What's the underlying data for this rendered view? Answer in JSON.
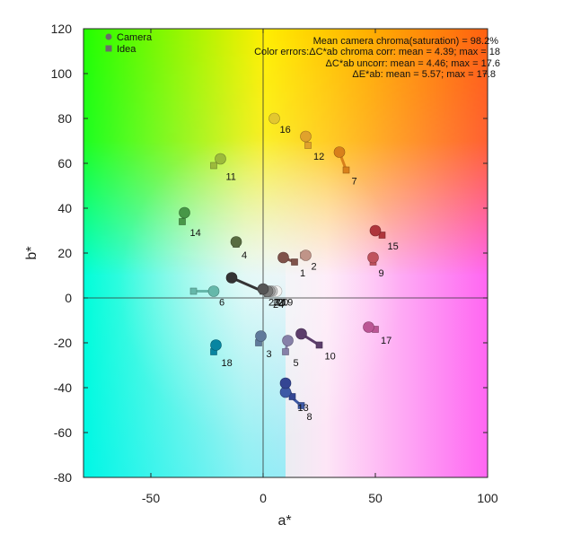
{
  "chart_data": {
    "type": "scatter",
    "xlabel": "a*",
    "ylabel": "b*",
    "xlim": [
      -80,
      100
    ],
    "ylim": [
      -80,
      120
    ],
    "xticks": [
      "-50",
      "0",
      "50",
      "100"
    ],
    "yticks": [
      "-80",
      "-60",
      "-40",
      "-20",
      "0",
      "20",
      "40",
      "60",
      "80",
      "100",
      "120"
    ],
    "background": "CIELAB a*b* color plane",
    "grid": false,
    "legend_position": "top-left",
    "legend": [
      {
        "label": "Camera",
        "marker": "circle"
      },
      {
        "label": "Idea",
        "marker": "square"
      }
    ],
    "annotations": [
      "Mean camera chroma(saturation) = 98.2%",
      "Color errors:ΔC*ab chroma corr: mean = 4.39; max = 18",
      "ΔC*ab uncorr: mean = 4.46; max = 17.6",
      "ΔE*ab: mean = 5.57; max = 17.8"
    ],
    "patches": [
      {
        "id": "1",
        "camera": [
          9,
          18
        ],
        "ideal": [
          14,
          16
        ],
        "color": "#80534a"
      },
      {
        "id": "2",
        "camera": [
          19,
          19
        ],
        "ideal": [
          18,
          19
        ],
        "color": "#c09488"
      },
      {
        "id": "3",
        "camera": [
          -1,
          -17
        ],
        "ideal": [
          -2,
          -20
        ],
        "color": "#5f7a9b"
      },
      {
        "id": "4",
        "camera": [
          -12,
          25
        ],
        "ideal": [
          -12,
          24
        ],
        "color": "#586c41"
      },
      {
        "id": "5",
        "camera": [
          11,
          -19
        ],
        "ideal": [
          10,
          -24
        ],
        "color": "#8680a8"
      },
      {
        "id": "6",
        "camera": [
          -22,
          3
        ],
        "ideal": [
          -31,
          3
        ],
        "color": "#65b8aa"
      },
      {
        "id": "7",
        "camera": [
          34,
          65
        ],
        "ideal": [
          37,
          57
        ],
        "color": "#d8801b"
      },
      {
        "id": "8",
        "camera": [
          10,
          -42
        ],
        "ideal": [
          17,
          -48
        ],
        "color": "#3e5aa6"
      },
      {
        "id": "9",
        "camera": [
          49,
          18
        ],
        "ideal": [
          49,
          16
        ],
        "color": "#c0535e"
      },
      {
        "id": "10",
        "camera": [
          17,
          -16
        ],
        "ideal": [
          25,
          -21
        ],
        "color": "#5c3d6b"
      },
      {
        "id": "11",
        "camera": [
          -19,
          62
        ],
        "ideal": [
          -22,
          59
        ],
        "color": "#9cba3c"
      },
      {
        "id": "12",
        "camera": [
          19,
          72
        ],
        "ideal": [
          20,
          68
        ],
        "color": "#e0a22c"
      },
      {
        "id": "13",
        "camera": [
          10,
          -38
        ],
        "ideal": [
          13,
          -44
        ],
        "color": "#344593"
      },
      {
        "id": "14",
        "camera": [
          -35,
          38
        ],
        "ideal": [
          -36,
          34
        ],
        "color": "#479747"
      },
      {
        "id": "15",
        "camera": [
          50,
          30
        ],
        "ideal": [
          53,
          28
        ],
        "color": "#af363c"
      },
      {
        "id": "16",
        "camera": [
          5,
          80
        ],
        "ideal": [
          5,
          80
        ],
        "color": "#e3c72f"
      },
      {
        "id": "17",
        "camera": [
          47,
          -13
        ],
        "ideal": [
          50,
          -14
        ],
        "color": "#bb5695"
      },
      {
        "id": "18",
        "camera": [
          -21,
          -21
        ],
        "ideal": [
          -22,
          -24
        ],
        "color": "#0885a1"
      },
      {
        "id": "19",
        "camera": [
          6,
          3
        ],
        "ideal": [
          4,
          3
        ],
        "color": "#f3f3f2"
      },
      {
        "id": "20",
        "camera": [
          4,
          3
        ],
        "ideal": [
          3,
          3
        ],
        "color": "#c8c8c8"
      },
      {
        "id": "21",
        "camera": [
          3,
          3
        ],
        "ideal": [
          2,
          3
        ],
        "color": "#a0a0a0"
      },
      {
        "id": "22",
        "camera": [
          2,
          3
        ],
        "ideal": [
          1,
          3
        ],
        "color": "#7a7a79"
      },
      {
        "id": "23",
        "camera": [
          0,
          4
        ],
        "ideal": [
          0,
          3
        ],
        "color": "#555555"
      },
      {
        "id": "24",
        "camera": [
          -14,
          9
        ],
        "ideal": [
          2,
          2
        ],
        "color": "#343434"
      }
    ]
  }
}
